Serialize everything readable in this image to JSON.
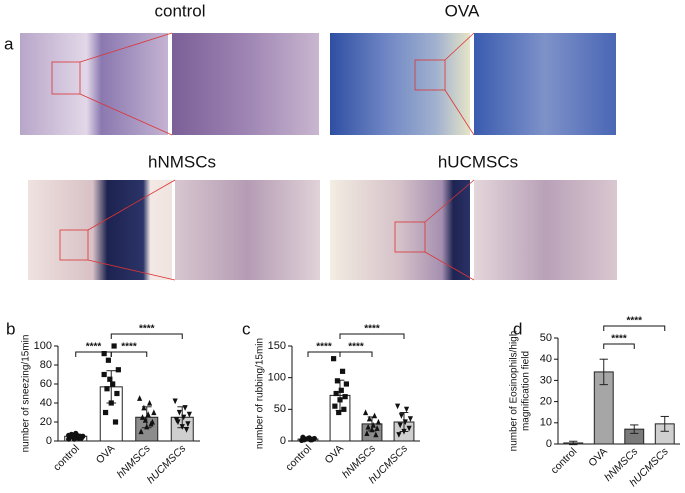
{
  "panel_a": {
    "label": "a",
    "groups": [
      "control",
      "OVA",
      "hNMSCs",
      "hUCMSCs"
    ]
  },
  "chart_data": [
    {
      "type": "bar",
      "label": "b",
      "ylabel": [
        "number of sneezing/15min"
      ],
      "categories": [
        "control",
        "OVA",
        "hNMSCs",
        "hUCMSCs"
      ],
      "values": [
        5,
        57,
        25,
        25
      ],
      "errors": [
        2,
        17,
        11,
        11
      ],
      "colors": [
        "#ffffff",
        "#ffffff",
        "#8c8c8c",
        "#cfcfcf"
      ],
      "markers": [
        "circle",
        "square",
        "triangle",
        "triangle-down"
      ],
      "points": [
        [
          2,
          3,
          4,
          5,
          6,
          7,
          3,
          8,
          4,
          5,
          2,
          6
        ],
        [
          92,
          100,
          85,
          75,
          60,
          55,
          50,
          40,
          30,
          20,
          65,
          70
        ],
        [
          45,
          40,
          35,
          30,
          28,
          25,
          20,
          15,
          10,
          18,
          22
        ],
        [
          42,
          35,
          30,
          28,
          25,
          20,
          18,
          15,
          22,
          12
        ]
      ],
      "ylim": [
        0,
        100
      ],
      "yticks": [
        0,
        20,
        40,
        60,
        80,
        100
      ],
      "significance": [
        {
          "pair": [
            "control",
            "OVA"
          ],
          "label": "****"
        },
        {
          "pair": [
            "OVA",
            "hNMSCs"
          ],
          "label": "****"
        },
        {
          "pair": [
            "OVA",
            "hUCMSCs"
          ],
          "label": "****"
        }
      ]
    },
    {
      "type": "bar",
      "label": "c",
      "ylabel": [
        "number of rubbing/15min"
      ],
      "categories": [
        "control",
        "OVA",
        "hNMSCs",
        "hUCMSCs"
      ],
      "values": [
        3,
        72,
        27,
        30
      ],
      "errors": [
        2,
        24,
        11,
        15
      ],
      "colors": [
        "#ffffff",
        "#ffffff",
        "#8c8c8c",
        "#cfcfcf"
      ],
      "markers": [
        "circle",
        "square",
        "triangle",
        "triangle-down"
      ],
      "points": [
        [
          1,
          2,
          3,
          4,
          5,
          2,
          3,
          4,
          6,
          2
        ],
        [
          130,
          110,
          95,
          90,
          80,
          75,
          70,
          65,
          55,
          50,
          45
        ],
        [
          45,
          40,
          35,
          30,
          25,
          22,
          20,
          18,
          12,
          10
        ],
        [
          55,
          50,
          40,
          35,
          30,
          25,
          20,
          15,
          10
        ]
      ],
      "ylim": [
        0,
        150
      ],
      "yticks": [
        0,
        50,
        100,
        150
      ],
      "significance": [
        {
          "pair": [
            "control",
            "OVA"
          ],
          "label": "****"
        },
        {
          "pair": [
            "OVA",
            "hNMSCs"
          ],
          "label": "****"
        },
        {
          "pair": [
            "OVA",
            "hUCMSCs"
          ],
          "label": "****"
        }
      ]
    },
    {
      "type": "bar",
      "label": "d",
      "ylabel": [
        "number of Eosinophils/high",
        "magnification field"
      ],
      "categories": [
        "control",
        "OVA",
        "hNMSCs",
        "hUCMSCs"
      ],
      "values": [
        0.5,
        34,
        7,
        9.5
      ],
      "errors": [
        0.8,
        6,
        2,
        3.5
      ],
      "colors": [
        "#ffffff",
        "#a6a6a6",
        "#7a7a7a",
        "#cfcfcf"
      ],
      "ylim": [
        0,
        50
      ],
      "yticks": [
        0,
        10,
        20,
        30,
        40,
        50
      ],
      "significance": [
        {
          "pair": [
            "OVA",
            "hNMSCs"
          ],
          "label": "****"
        },
        {
          "pair": [
            "OVA",
            "hUCMSCs"
          ],
          "label": "****"
        }
      ]
    }
  ]
}
